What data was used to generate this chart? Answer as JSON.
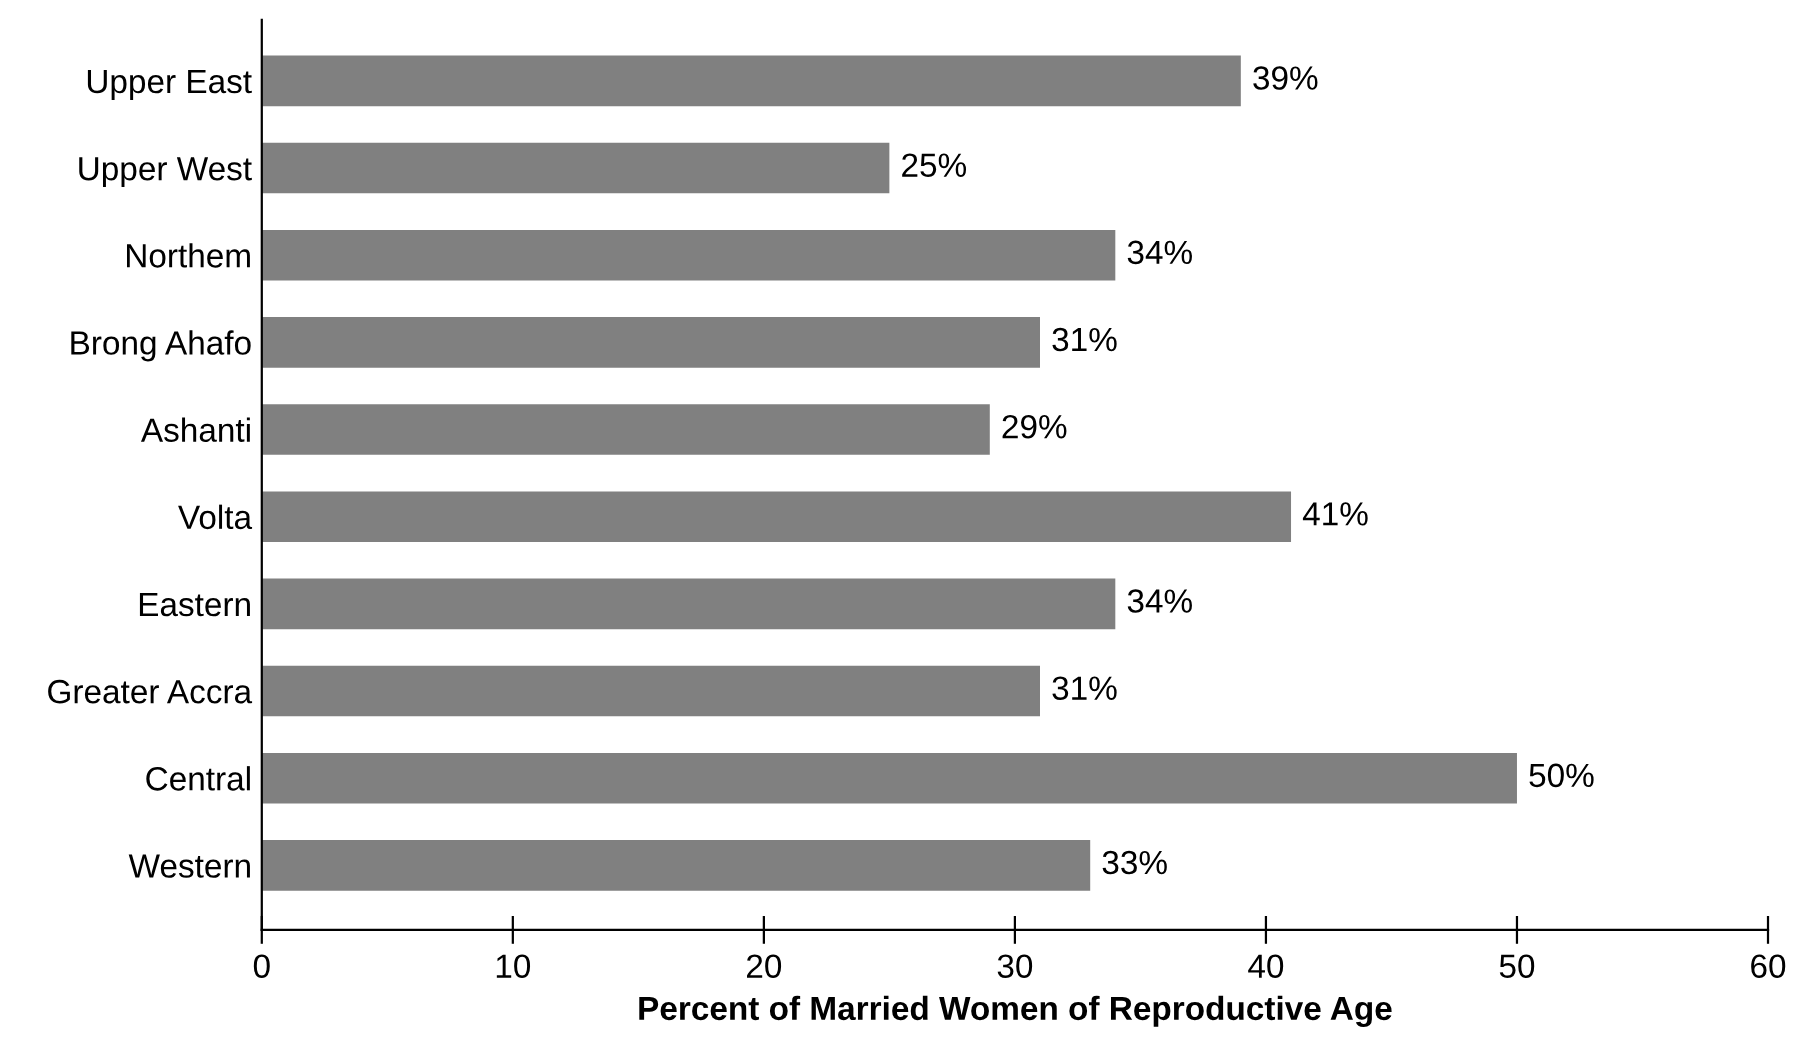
{
  "chart_data": {
    "type": "bar",
    "orientation": "horizontal",
    "xlabel": "Percent of Married Women of Reproductive Age",
    "categories": [
      "Upper East",
      "Upper West",
      "Northem",
      "Brong Ahafo",
      "Ashanti",
      "Volta",
      "Eastern",
      "Greater Accra",
      "Central",
      "Western"
    ],
    "values": [
      39,
      25,
      34,
      31,
      29,
      41,
      34,
      31,
      50,
      33
    ],
    "value_labels": [
      "39%",
      "25%",
      "34%",
      "31%",
      "29%",
      "41%",
      "34%",
      "31%",
      "50%",
      "33%"
    ],
    "color": "#808080",
    "xlim": [
      0,
      60
    ],
    "xticks": [
      0,
      10,
      20,
      30,
      40,
      50,
      60
    ],
    "grid": false,
    "legend": false
  }
}
